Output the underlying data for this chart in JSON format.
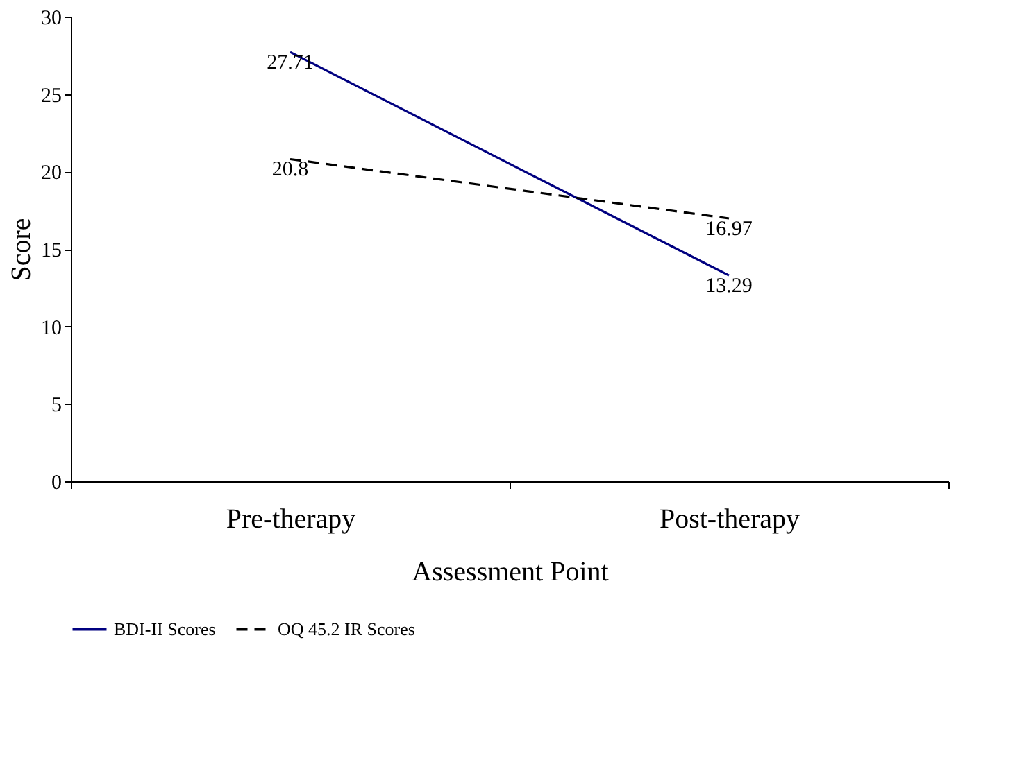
{
  "chart_data": {
    "type": "line",
    "xlabel": "Assessment Point",
    "ylabel": "Score",
    "categories": [
      "Pre-therapy",
      "Post-therapy"
    ],
    "series": [
      {
        "name": "BDI-II Scores",
        "color": "#000080",
        "values": [
          27.71,
          13.29
        ],
        "line_style": "solid"
      },
      {
        "name": "OQ 45.2 IR Scores",
        "color": "#000000",
        "values": [
          20.8,
          16.97
        ],
        "line_style": "dashed"
      }
    ],
    "ylim": [
      0,
      30
    ],
    "yticks": [
      0,
      5,
      10,
      15,
      20,
      25,
      30
    ],
    "data_labels": true,
    "grid": false,
    "legend": "bottom",
    "marker": "none"
  }
}
